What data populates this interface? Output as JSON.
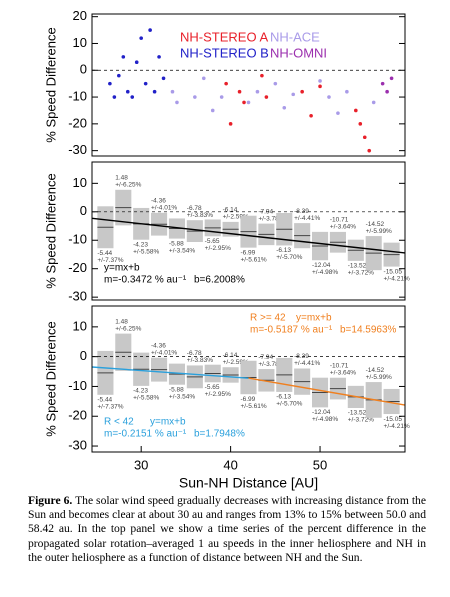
{
  "chart_data": [
    {
      "type": "scatter",
      "ylabel": "% Speed Difference",
      "xlim": [
        24.5,
        59.5
      ],
      "ylim": [
        -32,
        21
      ],
      "yticks": [
        -30,
        -20,
        -10,
        0,
        10,
        20
      ],
      "zero_line": true,
      "series": [
        {
          "name": "NH-STEREO A",
          "color": "#e8202a",
          "x": [
            39.5,
            40,
            41,
            41.5,
            43.5,
            44,
            48,
            49,
            50,
            54,
            54.5,
            55,
            55.5
          ],
          "values": [
            -5,
            -20,
            -8,
            -12,
            -2,
            -10,
            -8,
            -17,
            -6,
            -15,
            -20,
            -25,
            -30
          ]
        },
        {
          "name": "NH-ACE",
          "color": "#a99be8",
          "x": [
            33.5,
            34,
            36,
            37,
            38,
            39,
            42,
            43,
            45,
            46,
            47,
            50,
            51,
            52,
            53,
            56
          ],
          "values": [
            -8,
            -12,
            -10,
            -3,
            -15,
            -10,
            -12,
            -8,
            -5,
            -14,
            -9,
            -4,
            -10,
            -16,
            -8,
            -12
          ]
        },
        {
          "name": "NH-STEREO B",
          "color": "#2121c8",
          "x": [
            26.5,
            27,
            27.5,
            28,
            28.5,
            29,
            29.5,
            30,
            30.5,
            31,
            31.5,
            32,
            32.5
          ],
          "values": [
            -5,
            -10,
            -2,
            5,
            -8,
            -10,
            3,
            12,
            -5,
            15,
            -8,
            5,
            -3
          ]
        },
        {
          "name": "NH-OMNI",
          "color": "#9b2fae",
          "x": [
            57,
            57.5,
            58
          ],
          "values": [
            -5,
            -8,
            -3
          ]
        }
      ]
    },
    {
      "type": "binned",
      "ylabel": "% Speed Difference",
      "xlim": [
        24.5,
        59.5
      ],
      "ylim": [
        -31,
        17.5
      ],
      "yticks": [
        -30,
        -20,
        -10,
        0,
        10
      ],
      "zero_line": true,
      "x": [
        26,
        28,
        30,
        32,
        34,
        36,
        38,
        40,
        42,
        44,
        46,
        48,
        50,
        52,
        54,
        56,
        58
      ],
      "values": [
        -5.44,
        1.48,
        -4.23,
        -4.36,
        -5.88,
        -6.78,
        -5.65,
        -6.14,
        -6.99,
        -7.94,
        -6.13,
        -8.39,
        -12.04,
        -10.71,
        -13.52,
        -14.52,
        -15.05
      ],
      "errors": [
        7.37,
        6.25,
        5.58,
        4.01,
        3.54,
        3.83,
        2.95,
        2.59,
        5.61,
        3.78,
        5.7,
        4.41,
        4.98,
        3.64,
        3.72,
        5.99,
        4.21
      ],
      "error_labels": [
        "+/-7.37%",
        "+/-6.25%",
        "+/-5.58%",
        "+/-4.01%",
        "+/-3.54%",
        "+/-3.83%",
        "+/-2.95%",
        "+/-2.59%",
        "+/-5.61%",
        "+/-3.78%",
        "+/-5.70%",
        "+/-4.41%",
        "+/-4.98%",
        "+/-3.64%",
        "+/-3.72%",
        "+/-5.99%",
        "+/-4.21%"
      ],
      "fits": [
        {
          "equation": "y=mx+b",
          "m": -0.3472,
          "m_label": "m=-0.3472 % au⁻¹",
          "b": 6.2008,
          "b_label": "b=6.2008%",
          "color": "#000000",
          "xrange": [
            24.5,
            59.5
          ]
        }
      ]
    },
    {
      "type": "binned",
      "ylabel": "% Speed Difference",
      "xlabel": "Sun-NH Distance [AU]",
      "xlim": [
        24.5,
        59.5
      ],
      "ylim": [
        -32,
        17
      ],
      "yticks": [
        -30,
        -20,
        -10,
        0,
        10
      ],
      "xticks": [
        30,
        40,
        50
      ],
      "zero_line": true,
      "x": [
        26,
        28,
        30,
        32,
        34,
        36,
        38,
        40,
        42,
        44,
        46,
        48,
        50,
        52,
        54,
        56,
        58
      ],
      "values": [
        -5.44,
        1.48,
        -4.23,
        -4.36,
        -5.88,
        -6.78,
        -5.65,
        -6.14,
        -6.99,
        -7.94,
        -6.13,
        -8.39,
        -12.04,
        -10.71,
        -13.52,
        -14.52,
        -15.05
      ],
      "errors": [
        7.37,
        6.25,
        5.58,
        4.01,
        3.54,
        3.83,
        2.95,
        2.59,
        5.61,
        3.78,
        5.7,
        4.41,
        4.98,
        3.64,
        3.72,
        5.99,
        4.21
      ],
      "error_labels": [
        "+/-7.37%",
        "+/-6.25%",
        "+/-5.58%",
        "+/-4.01%",
        "+/-3.54%",
        "+/-3.83%",
        "+/-2.95%",
        "+/-2.59%",
        "+/-5.61%",
        "+/-3.78%",
        "+/-5.70%",
        "+/-4.41%",
        "+/-4.98%",
        "+/-3.64%",
        "+/-3.72%",
        "+/-5.99%",
        "+/-4.21%"
      ],
      "fits": [
        {
          "name": "R < 42",
          "equation": "y=mx+b",
          "m": -0.2151,
          "m_label": "m=-0.2151 % au⁻¹",
          "b": 1.7948,
          "b_label": "b=1.7948%",
          "color": "#2aa0dc",
          "xrange": [
            24.5,
            42
          ]
        },
        {
          "name": "R >= 42",
          "equation": "y=mx+b",
          "m": -0.5187,
          "m_label": "m=-0.5187 % au⁻¹",
          "b": 14.5963,
          "b_label": "b=14.5963%",
          "color": "#f07f1e",
          "xrange": [
            42,
            59.5
          ]
        }
      ]
    }
  ],
  "caption": {
    "label": "Figure 6.",
    "text": "The solar wind speed gradually decreases with increasing distance from the Sun and becomes clear at about 30 au and ranges from 13% to 15% between 50.0 and 58.42 au. In the top panel we show a time series of the percent difference in the propagated solar rotation–averaged 1 au speeds in the inner heliosphere and NH in the outer heliosphere as a function of distance between NH and the Sun."
  }
}
